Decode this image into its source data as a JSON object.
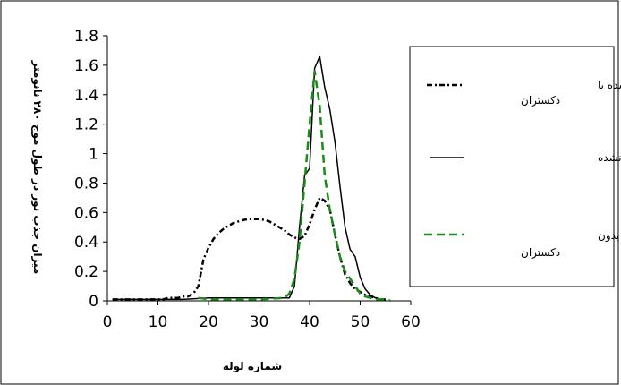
{
  "chart_data": {
    "type": "line",
    "title": "",
    "xlabel": "شماره لوله",
    "ylabel": "میزان جذب نور در طول موج ۲۸۰ نانومتر",
    "xlim": [
      0,
      60
    ],
    "ylim": [
      0,
      1.8
    ],
    "xticks": [
      0,
      10,
      20,
      30,
      40,
      50,
      60
    ],
    "yticks": [
      0,
      0.2,
      0.4,
      0.6,
      0.8,
      1,
      1.2,
      1.4,
      1.6,
      1.8
    ],
    "xtick_labels": [
      "0",
      "10",
      "20",
      "30",
      "40",
      "50",
      "60"
    ],
    "ytick_labels": [
      "0",
      "0.2",
      "0.4",
      "0.6",
      "0.8",
      "1",
      "1.2",
      "1.4",
      "1.6",
      "1.8"
    ],
    "grid": false,
    "legend_position": "right",
    "series": [
      {
        "name": "لیزوزیم اصلاح شده با دکستران",
        "color": "#000000",
        "style": "dash-dot",
        "x": [
          1,
          2,
          3,
          4,
          5,
          6,
          7,
          8,
          9,
          10,
          11,
          12,
          13,
          14,
          15,
          16,
          17,
          18,
          19,
          20,
          21,
          22,
          23,
          24,
          25,
          26,
          27,
          28,
          29,
          30,
          31,
          32,
          33,
          34,
          35,
          36,
          37,
          38,
          39,
          40,
          41,
          42,
          43,
          44,
          45,
          46,
          47,
          48,
          49,
          50,
          51,
          52,
          53,
          54,
          55
        ],
        "y": [
          0.01,
          0.01,
          0.01,
          0.01,
          0.01,
          0.01,
          0.01,
          0.01,
          0.01,
          0.01,
          0.01,
          0.02,
          0.02,
          0.02,
          0.03,
          0.03,
          0.05,
          0.1,
          0.28,
          0.36,
          0.42,
          0.46,
          0.49,
          0.51,
          0.53,
          0.54,
          0.55,
          0.555,
          0.555,
          0.555,
          0.55,
          0.54,
          0.52,
          0.5,
          0.48,
          0.45,
          0.43,
          0.42,
          0.44,
          0.52,
          0.62,
          0.7,
          0.68,
          0.62,
          0.45,
          0.3,
          0.18,
          0.12,
          0.08,
          0.06,
          0.04,
          0.03,
          0.02,
          0.01,
          0.01
        ]
      },
      {
        "name": "لیزوزیم اصلاح نشده",
        "color": "#000000",
        "style": "solid",
        "x": [
          1,
          5,
          10,
          15,
          20,
          25,
          30,
          35,
          36,
          37,
          38,
          39,
          40,
          41,
          42,
          43,
          44,
          45,
          46,
          47,
          48,
          49,
          50,
          51,
          52,
          53,
          54,
          55
        ],
        "y": [
          0.01,
          0.01,
          0.01,
          0.01,
          0.02,
          0.02,
          0.02,
          0.02,
          0.02,
          0.1,
          0.5,
          0.85,
          0.9,
          1.58,
          1.66,
          1.45,
          1.3,
          1.08,
          0.78,
          0.5,
          0.35,
          0.3,
          0.16,
          0.08,
          0.04,
          0.02,
          0.01,
          0.01
        ]
      },
      {
        "name": "لیزوزیم حرارت دیده بدون دکستران",
        "color": "#1a8a1a",
        "style": "dashed",
        "x": [
          18,
          20,
          25,
          30,
          35,
          36,
          37,
          38,
          39,
          40,
          41,
          42,
          43,
          44,
          45,
          46,
          47,
          48,
          49,
          50,
          51,
          52,
          53,
          54,
          55,
          56
        ],
        "y": [
          0.02,
          0.01,
          0.01,
          0.01,
          0.02,
          0.05,
          0.15,
          0.4,
          0.8,
          1.2,
          1.56,
          1.32,
          0.85,
          0.62,
          0.45,
          0.3,
          0.2,
          0.15,
          0.1,
          0.05,
          0.03,
          0.02,
          0.01,
          0.01,
          0.01,
          0.0
        ]
      }
    ]
  }
}
